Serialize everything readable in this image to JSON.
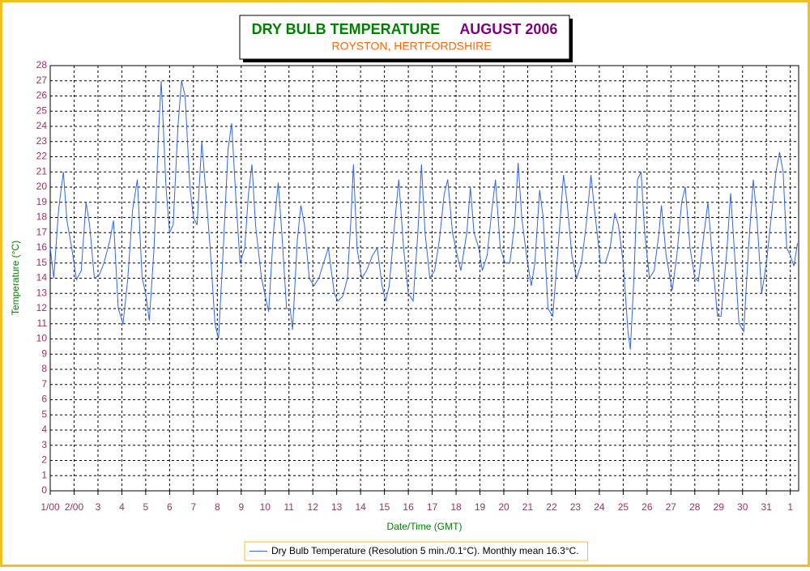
{
  "chart_data": {
    "type": "line",
    "title": "DRY BULB TEMPERATURE",
    "title_period": "AUGUST 2006",
    "subtitle": "ROYSTON, HERTFORDSHIRE",
    "x_label": "Date/Time (GMT)",
    "y_label": "Temperature (°C)",
    "xlim": [
      1,
      32.35
    ],
    "ylim": [
      0,
      28
    ],
    "xticks": [
      {
        "value": 1,
        "label": "1/00"
      },
      {
        "value": 2,
        "label": "2/00"
      },
      3,
      4,
      5,
      6,
      7,
      8,
      9,
      10,
      11,
      12,
      13,
      14,
      15,
      16,
      17,
      18,
      19,
      20,
      21,
      22,
      23,
      24,
      25,
      26,
      27,
      28,
      29,
      30,
      31,
      {
        "value": 32,
        "label": "1"
      }
    ],
    "yticks": [
      0,
      1,
      2,
      3,
      4,
      5,
      6,
      7,
      8,
      9,
      10,
      11,
      12,
      13,
      14,
      15,
      16,
      17,
      18,
      19,
      20,
      21,
      22,
      23,
      24,
      25,
      26,
      27,
      28
    ],
    "grid": true,
    "legend_position": "bottom",
    "x": [
      1.0,
      1.15,
      1.35,
      1.55,
      1.7,
      1.9,
      2.1,
      2.3,
      2.5,
      2.65,
      2.85,
      3.05,
      3.25,
      3.5,
      3.65,
      3.85,
      4.05,
      4.25,
      4.45,
      4.65,
      4.85,
      5.0,
      5.15,
      5.35,
      5.55,
      5.65,
      5.85,
      6.0,
      6.15,
      6.35,
      6.5,
      6.65,
      6.85,
      7.0,
      7.15,
      7.35,
      7.5,
      7.7,
      7.9,
      8.05,
      8.25,
      8.45,
      8.6,
      8.75,
      8.95,
      9.15,
      9.3,
      9.45,
      9.6,
      9.85,
      10.05,
      10.15,
      10.35,
      10.55,
      10.7,
      10.9,
      11.05,
      11.15,
      11.35,
      11.5,
      11.65,
      11.85,
      12.05,
      12.25,
      12.45,
      12.65,
      12.9,
      13.05,
      13.25,
      13.45,
      13.6,
      13.7,
      13.85,
      14.05,
      14.25,
      14.5,
      14.7,
      14.9,
      15.05,
      15.2,
      15.45,
      15.6,
      15.8,
      16.0,
      16.2,
      16.4,
      16.55,
      16.7,
      16.9,
      17.1,
      17.3,
      17.5,
      17.65,
      17.85,
      18.05,
      18.2,
      18.45,
      18.6,
      18.75,
      18.95,
      19.1,
      19.3,
      19.5,
      19.65,
      19.85,
      20.05,
      20.25,
      20.45,
      20.6,
      20.75,
      20.95,
      21.15,
      21.3,
      21.5,
      21.65,
      21.85,
      22.05,
      22.25,
      22.5,
      22.65,
      22.85,
      23.05,
      23.25,
      23.45,
      23.65,
      23.8,
      24.05,
      24.25,
      24.45,
      24.65,
      24.8,
      25.0,
      25.2,
      25.3,
      25.45,
      25.6,
      25.75,
      25.9,
      26.1,
      26.3,
      26.5,
      26.6,
      26.8,
      27.05,
      27.25,
      27.45,
      27.6,
      27.8,
      28.0,
      28.15,
      28.35,
      28.55,
      28.75,
      28.95,
      29.1,
      29.35,
      29.5,
      29.65,
      29.85,
      30.05,
      30.25,
      30.45,
      30.6,
      30.8,
      31.0,
      31.2,
      31.4,
      31.55,
      31.7,
      31.85,
      32.0,
      32.15,
      32.3
    ],
    "series": [
      {
        "name": "Dry Bulb Temperature (Resolution 5 min./0.1°C). Monthly mean 16.3°C.",
        "color": "#3366dd",
        "values": [
          16.0,
          14.0,
          18.5,
          21.0,
          17.8,
          16.0,
          13.9,
          14.5,
          19.0,
          17.5,
          14.0,
          14.2,
          15.0,
          16.5,
          17.8,
          12.0,
          11.0,
          14.0,
          18.5,
          20.5,
          14.0,
          13.0,
          11.2,
          16.0,
          24.0,
          27.0,
          20.0,
          17.0,
          17.5,
          24.0,
          27.0,
          26.0,
          20.0,
          18.0,
          17.5,
          23.0,
          20.0,
          16.0,
          11.0,
          10.0,
          16.0,
          22.5,
          24.2,
          20.0,
          15.0,
          16.0,
          19.5,
          21.5,
          17.5,
          14.0,
          12.5,
          11.8,
          17.0,
          20.3,
          17.0,
          12.0,
          12.0,
          10.6,
          16.5,
          18.8,
          17.5,
          14.0,
          13.5,
          14.0,
          15.0,
          16.0,
          13.0,
          12.5,
          12.8,
          14.0,
          18.0,
          21.5,
          16.0,
          14.0,
          14.5,
          15.5,
          16.0,
          13.5,
          12.5,
          13.5,
          18.0,
          20.5,
          16.0,
          13.0,
          12.5,
          17.0,
          21.5,
          17.0,
          14.0,
          14.5,
          16.5,
          19.5,
          20.5,
          17.0,
          15.5,
          14.5,
          17.0,
          20.0,
          17.0,
          16.0,
          14.5,
          15.5,
          18.5,
          20.5,
          16.0,
          15.0,
          15.0,
          17.5,
          21.6,
          18.0,
          15.5,
          13.5,
          15.0,
          19.8,
          18.0,
          12.0,
          11.5,
          15.5,
          20.8,
          19.0,
          15.5,
          14.0,
          15.0,
          17.5,
          20.8,
          18.5,
          15.0,
          15.0,
          16.0,
          18.3,
          17.5,
          15.0,
          10.5,
          9.3,
          14.0,
          20.5,
          21.0,
          17.0,
          14.0,
          14.5,
          17.0,
          18.8,
          15.5,
          13.2,
          15.5,
          19.0,
          20.0,
          16.0,
          14.0,
          13.8,
          16.5,
          19.0,
          15.0,
          11.5,
          11.5,
          16.0,
          19.6,
          16.0,
          11.0,
          10.5,
          16.0,
          20.5,
          18.0,
          13.0,
          15.0,
          18.0,
          21.0,
          22.3,
          21.0,
          16.0,
          15.5,
          14.8,
          16.3
        ]
      }
    ]
  }
}
